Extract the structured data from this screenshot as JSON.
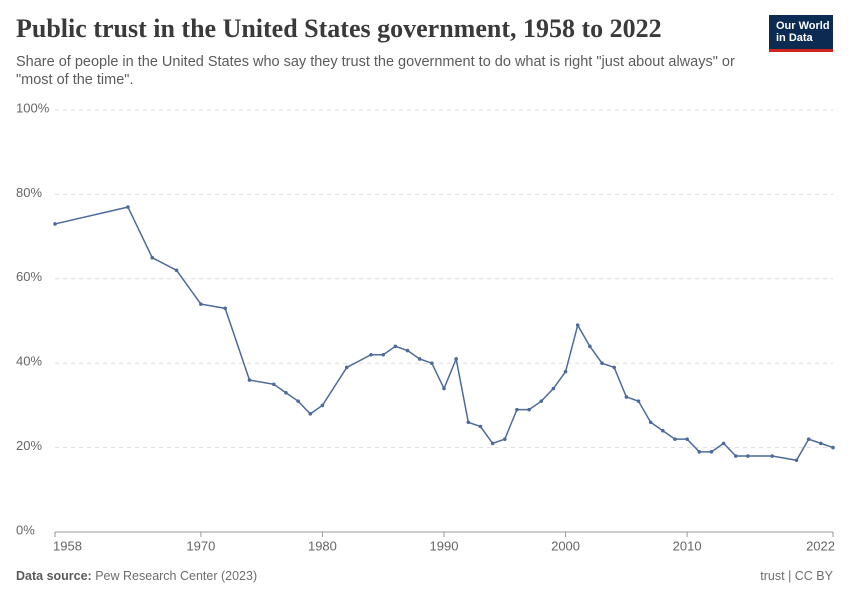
{
  "chart_data": {
    "type": "line",
    "title": "Public trust in the United States government, 1958 to 2022",
    "subtitle": "Share of people in the United States who say they trust the government to do what is right \"just about always\" or \"most of the time\".",
    "logo": [
      "Our World",
      "in Data"
    ],
    "source_label": "Data source:",
    "source": "Pew Research Center (2023)",
    "license": "trust | CC BY",
    "color": "#4c6a9c",
    "grid": true,
    "x": [
      1958,
      1964,
      1966,
      1968,
      1970,
      1972,
      1974,
      1976,
      1977,
      1978,
      1979,
      1980,
      1982,
      1984,
      1985,
      1986,
      1987,
      1988,
      1989,
      1990,
      1991,
      1992,
      1993,
      1994,
      1995,
      1996,
      1997,
      1998,
      1999,
      2000,
      2001,
      2002,
      2003,
      2004,
      2005,
      2006,
      2007,
      2008,
      2009,
      2010,
      2011,
      2012,
      2013,
      2014,
      2015,
      2017,
      2019,
      2020,
      2021,
      2022
    ],
    "values": [
      73,
      77,
      65,
      62,
      54,
      53,
      36,
      35,
      33,
      31,
      28,
      30,
      39,
      42,
      42,
      44,
      43,
      41,
      40,
      34,
      41,
      26,
      25,
      21,
      22,
      29,
      29,
      31,
      34,
      38,
      49,
      44,
      40,
      39,
      32,
      31,
      26,
      24,
      22,
      22,
      19,
      19,
      21,
      18,
      18,
      18,
      17,
      22,
      21,
      20
    ],
    "xlim": [
      1958,
      2022
    ],
    "xticks": [
      1958,
      1970,
      1980,
      1990,
      2000,
      2010,
      2022
    ],
    "ylim": [
      0,
      100
    ],
    "yticks": [
      {
        "value": 0,
        "label": "0%"
      },
      {
        "value": 20,
        "label": "20%"
      },
      {
        "value": 40,
        "label": "40%"
      },
      {
        "value": 60,
        "label": "60%"
      },
      {
        "value": 80,
        "label": "80%"
      },
      {
        "value": 100,
        "label": "100%"
      }
    ]
  }
}
